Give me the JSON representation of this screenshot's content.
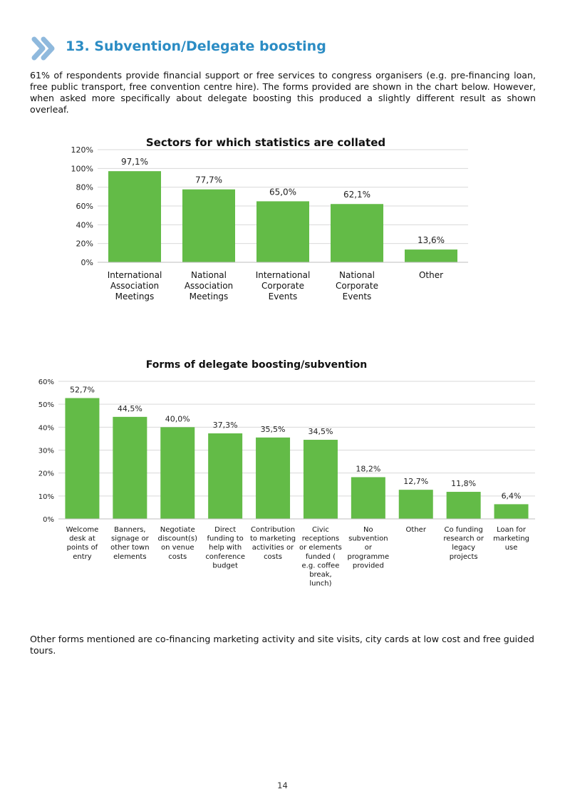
{
  "section": {
    "number_title": "13. Subvention/Delegate boosting",
    "icon": "double-chevron-right-icon",
    "accent_color": "#2b8cc4",
    "icon_color": "#8fb9dd"
  },
  "intro_text": "61% of respondents provide financial support or free services to congress organisers (e.g. pre-financing loan, free public transport, free convention centre hire). The forms provided are shown in the chart below. However, when asked more specifically about delegate boosting this produced a slightly different result as shown overleaf.",
  "outro_text": "Other forms mentioned are co-financing marketing activity and site visits, city cards at low cost and free guided tours.",
  "page_number": "14",
  "chart_data": [
    {
      "type": "bar",
      "title": "Sectors for which statistics are collated",
      "categories": [
        [
          "International",
          "Association",
          "Meetings"
        ],
        [
          "National",
          "Association",
          "Meetings"
        ],
        [
          "International",
          "Corporate",
          "Events"
        ],
        [
          "National",
          "Corporate",
          "Events"
        ],
        [
          "Other"
        ]
      ],
      "values": [
        97.1,
        77.7,
        65.0,
        62.1,
        13.6
      ],
      "value_labels": [
        "97,1%",
        "77,7%",
        "65,0%",
        "62,1%",
        "13,6%"
      ],
      "ylim": [
        0,
        120
      ],
      "yticks": [
        0,
        20,
        40,
        60,
        80,
        100,
        120
      ],
      "ytick_labels": [
        "0%",
        "20%",
        "40%",
        "60%",
        "80%",
        "100%",
        "120%"
      ],
      "grid": true,
      "bar_color": "#63bb47"
    },
    {
      "type": "bar",
      "title": "Forms of delegate boosting/subvention",
      "categories": [
        [
          "Welcome",
          "desk at",
          "points of",
          "entry"
        ],
        [
          "Banners,",
          "signage or",
          "other town",
          "elements"
        ],
        [
          "Negotiate",
          "discount(s)",
          "on venue",
          "costs"
        ],
        [
          "Direct",
          "funding to",
          "help with",
          "conference",
          "budget"
        ],
        [
          "Contribution",
          "to marketing",
          "activities or",
          "costs"
        ],
        [
          "Civic",
          "receptions",
          "or elements",
          "funded (",
          "e.g. coffee",
          "break,",
          "lunch)"
        ],
        [
          "No",
          "subvention",
          "or",
          "programme",
          "provided"
        ],
        [
          "Other"
        ],
        [
          "Co funding",
          "research or",
          "legacy",
          "projects"
        ],
        [
          "Loan for",
          "marketing",
          "use"
        ]
      ],
      "values": [
        52.7,
        44.5,
        40.0,
        37.3,
        35.5,
        34.5,
        18.2,
        12.7,
        11.8,
        6.4
      ],
      "value_labels": [
        "52,7%",
        "44,5%",
        "40,0%",
        "37,3%",
        "35,5%",
        "34,5%",
        "18,2%",
        "12,7%",
        "11,8%",
        "6,4%"
      ],
      "ylim": [
        0,
        60
      ],
      "yticks": [
        0,
        10,
        20,
        30,
        40,
        50,
        60
      ],
      "ytick_labels": [
        "0%",
        "10%",
        "20%",
        "30%",
        "40%",
        "50%",
        "60%"
      ],
      "grid": true,
      "bar_color": "#63bb47"
    }
  ]
}
